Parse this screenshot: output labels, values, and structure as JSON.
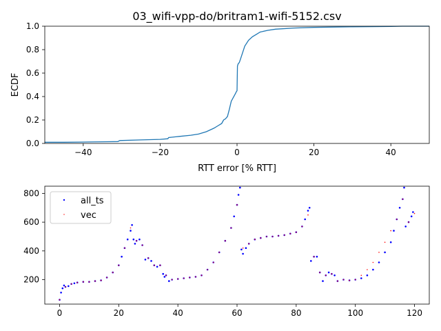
{
  "title": "03_wifi-vpp-do/britram1-wifi-5152.csv",
  "chart_data": [
    {
      "type": "line",
      "title": "03_wifi-vpp-do/britram1-wifi-5152.csv",
      "xlabel": "RTT error [% RTT]",
      "ylabel": "ECDF",
      "xlim": [
        -50,
        50
      ],
      "ylim": [
        0,
        1
      ],
      "xticks": [
        -40,
        -20,
        0,
        20,
        40
      ],
      "yticks": [
        0.0,
        0.2,
        0.4,
        0.6,
        0.8,
        1.0
      ],
      "xtick_labels": [
        "−40",
        "−20",
        "0",
        "20",
        "40"
      ],
      "ytick_labels": [
        "0.0",
        "0.2",
        "0.4",
        "0.6",
        "0.8",
        "1.0"
      ],
      "grid": false,
      "series": [
        {
          "color": "#1f77b4",
          "x": [
            -50,
            -45,
            -40,
            -35,
            -31,
            -30.5,
            -25,
            -20,
            -18,
            -17.8,
            -15,
            -12,
            -10,
            -8,
            -6,
            -5,
            -4,
            -3.5,
            -3,
            -2.5,
            -2,
            -1.5,
            -1,
            -0.5,
            -0.2,
            0,
            0.1,
            0.3,
            0.6,
            1,
            1.5,
            2,
            3,
            4,
            5,
            6,
            8,
            10,
            15,
            20,
            30,
            40,
            43,
            50
          ],
          "y": [
            0.01,
            0.01,
            0.012,
            0.014,
            0.016,
            0.025,
            0.03,
            0.035,
            0.04,
            0.05,
            0.06,
            0.07,
            0.08,
            0.1,
            0.13,
            0.15,
            0.17,
            0.2,
            0.21,
            0.23,
            0.29,
            0.36,
            0.39,
            0.42,
            0.44,
            0.45,
            0.66,
            0.68,
            0.69,
            0.73,
            0.78,
            0.83,
            0.88,
            0.91,
            0.93,
            0.95,
            0.965,
            0.975,
            0.985,
            0.99,
            0.995,
            0.998,
            1.0,
            1.0
          ]
        }
      ]
    },
    {
      "type": "scatter",
      "xlim": [
        -5,
        125
      ],
      "ylim": [
        30,
        850
      ],
      "xticks": [
        0,
        20,
        40,
        60,
        80,
        100,
        120
      ],
      "yticks": [
        200,
        400,
        600,
        800
      ],
      "xtick_labels": [
        "0",
        "20",
        "40",
        "60",
        "80",
        "100",
        "120"
      ],
      "ytick_labels": [
        "200",
        "400",
        "600",
        "800"
      ],
      "grid": false,
      "legend_position": "top-left",
      "series": [
        {
          "name": "all_ts",
          "color": "#0000ff",
          "marker": "dot",
          "x": [
            0,
            0.5,
            1,
            1.5,
            2,
            3,
            4,
            5,
            6,
            8,
            10,
            12,
            14,
            16,
            18,
            20,
            21,
            22,
            23,
            24,
            24.5,
            25,
            25.5,
            26,
            27,
            28,
            29,
            30,
            31,
            32,
            33,
            34,
            35,
            35.5,
            36,
            37,
            38,
            40,
            42,
            44,
            46,
            48,
            50,
            52,
            54,
            56,
            58,
            59,
            60,
            60.5,
            61,
            61.5,
            62,
            63,
            64,
            66,
            68,
            70,
            72,
            74,
            76,
            78,
            80,
            82,
            83,
            84,
            84.5,
            85,
            86,
            87,
            88,
            89,
            90,
            91,
            92,
            93,
            94,
            96,
            98,
            100,
            102,
            104,
            106,
            108,
            110,
            112,
            113,
            114,
            115,
            116,
            116.5,
            117,
            118,
            119,
            119.5
          ],
          "y": [
            60,
            110,
            140,
            160,
            150,
            155,
            170,
            175,
            180,
            185,
            185,
            190,
            195,
            215,
            250,
            300,
            360,
            420,
            480,
            540,
            580,
            480,
            450,
            470,
            480,
            440,
            340,
            350,
            330,
            300,
            290,
            300,
            240,
            220,
            230,
            190,
            200,
            205,
            210,
            215,
            220,
            230,
            270,
            320,
            390,
            470,
            560,
            640,
            720,
            790,
            840,
            410,
            380,
            420,
            450,
            480,
            490,
            500,
            500,
            505,
            510,
            520,
            530,
            570,
            620,
            680,
            700,
            330,
            360,
            360,
            250,
            190,
            230,
            250,
            240,
            230,
            190,
            200,
            195,
            200,
            210,
            230,
            270,
            320,
            390,
            460,
            540,
            620,
            700,
            760,
            840,
            570,
            600,
            640,
            670
          ]
        },
        {
          "name": "vec",
          "color": "#ff0000",
          "marker": "point",
          "x": [
            0,
            2,
            4,
            6,
            8,
            10,
            12,
            14,
            16,
            18,
            20,
            22,
            24,
            26,
            28,
            30,
            32,
            34,
            36,
            38,
            40,
            42,
            44,
            46,
            48,
            50,
            52,
            54,
            56,
            58,
            60,
            62,
            64,
            66,
            68,
            70,
            72,
            74,
            76,
            78,
            80,
            82,
            84,
            86,
            88,
            90,
            92,
            94,
            96,
            98,
            100,
            102,
            104,
            106,
            108,
            110,
            112,
            114,
            116,
            118,
            120
          ],
          "y": [
            60,
            150,
            170,
            180,
            185,
            185,
            190,
            195,
            215,
            250,
            300,
            420,
            560,
            470,
            440,
            350,
            300,
            300,
            230,
            200,
            205,
            210,
            215,
            220,
            230,
            270,
            320,
            390,
            470,
            560,
            720,
            420,
            450,
            480,
            490,
            500,
            500,
            505,
            510,
            520,
            530,
            570,
            650,
            360,
            250,
            230,
            240,
            190,
            200,
            195,
            200,
            230,
            270,
            320,
            390,
            460,
            540,
            620,
            760,
            600,
            660
          ]
        }
      ]
    }
  ]
}
